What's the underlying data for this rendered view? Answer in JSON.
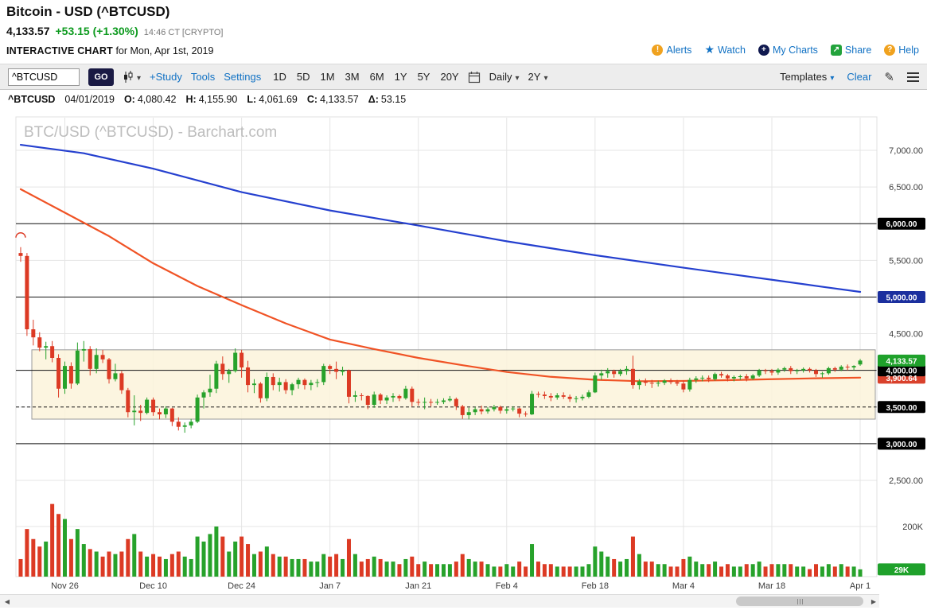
{
  "header": {
    "title": "Bitcoin - USD (^BTCUSD)",
    "price": "4,133.57",
    "change": "+53.15 (+1.30%)",
    "time": "14:46 CT [CRYPTO]",
    "subtitle_bold": "INTERACTIVE CHART",
    "subtitle_rest": "for Mon, Apr 1st, 2019",
    "links": [
      {
        "label": "Alerts",
        "glyph": "!"
      },
      {
        "label": "Watch",
        "glyph": "★"
      },
      {
        "label": "My Charts",
        "glyph": "+"
      },
      {
        "label": "Share",
        "glyph": "↗"
      },
      {
        "label": "Help",
        "glyph": "?"
      }
    ]
  },
  "toolbar": {
    "symbol_value": "^BTCUSD",
    "go_label": "GO",
    "links": [
      "+Study",
      "Tools",
      "Settings"
    ],
    "ranges": [
      "1D",
      "5D",
      "1M",
      "3M",
      "6M",
      "1Y",
      "5Y",
      "20Y"
    ],
    "frequency": "Daily",
    "span": "2Y",
    "templates_label": "Templates",
    "clear_label": "Clear"
  },
  "ohlc_bar": {
    "symbol": "^BTCUSD",
    "date": "04/01/2019",
    "fields": [
      {
        "k": "O:",
        "v": "4,080.42"
      },
      {
        "k": "H:",
        "v": "4,155.90"
      },
      {
        "k": "L:",
        "v": "4,061.69"
      },
      {
        "k": "C:",
        "v": "4,133.57"
      },
      {
        "k": "Δ:",
        "v": "53.15"
      }
    ]
  },
  "chart_data": {
    "type": "candlestick",
    "symbol": "^BTCUSD",
    "frequency": "daily",
    "watermark": "BTC/USD (^BTCUSD) - Barchart.com",
    "ylim": [
      2300,
      7450
    ],
    "x_labels": [
      {
        "label": "Nov 26",
        "i": 7
      },
      {
        "label": "Dec 10",
        "i": 21
      },
      {
        "label": "Dec 24",
        "i": 35
      },
      {
        "label": "Jan 7",
        "i": 49
      },
      {
        "label": "Jan 21",
        "i": 63
      },
      {
        "label": "Feb 4",
        "i": 77
      },
      {
        "label": "Feb 18",
        "i": 91
      },
      {
        "label": "Mar 4",
        "i": 105
      },
      {
        "label": "Mar 18",
        "i": 119
      },
      {
        "label": "Apr 1",
        "i": 133
      }
    ],
    "price_gridlines": [
      2500,
      3000,
      3500,
      4000,
      4500,
      5000,
      5500,
      6000,
      6500,
      7000
    ],
    "plain_price_labels": [
      {
        "price": 7000,
        "label": "7,000.00"
      },
      {
        "price": 6500,
        "label": "6,500.00"
      },
      {
        "price": 5500,
        "label": "5,500.00"
      },
      {
        "price": 4500,
        "label": "4,500.00"
      },
      {
        "price": 2500,
        "label": "2,500.00"
      }
    ],
    "boxed_price_labels": [
      {
        "price": 6000,
        "label": "6,000.00",
        "bg": "#000000"
      },
      {
        "price": 5000,
        "label": "5,000.00",
        "bg": "#1b2f9e"
      },
      {
        "price": 3900.64,
        "label": "3,900.64",
        "bg": "#d9412c"
      },
      {
        "price": 4000,
        "label": "4,000.00",
        "bg": "#000000"
      },
      {
        "price": 3500,
        "label": "3,500.00",
        "bg": "#000000"
      },
      {
        "price": 3000,
        "label": "3,000.00",
        "bg": "#000000"
      },
      {
        "price": 4133.57,
        "label": "4,133.57",
        "bg": "#1fa12b"
      }
    ],
    "hlines": [
      {
        "price": 6000,
        "dash": false
      },
      {
        "price": 5000,
        "dash": false
      },
      {
        "price": 4000,
        "dash": false
      },
      {
        "price": 3500,
        "dash": true
      },
      {
        "price": 3000,
        "dash": false
      }
    ],
    "band": {
      "top": 4280,
      "bottom": 3335,
      "fill": "#fcf3da",
      "border": "#9a9a9a"
    },
    "annotation_arc": {
      "i": 0,
      "price": 5810
    },
    "ma_blue": {
      "name": "long-moving-average",
      "color": "#2540cf",
      "points": [
        [
          0,
          7075
        ],
        [
          10,
          6960
        ],
        [
          21,
          6750
        ],
        [
          35,
          6430
        ],
        [
          49,
          6180
        ],
        [
          63,
          5975
        ],
        [
          77,
          5760
        ],
        [
          91,
          5570
        ],
        [
          105,
          5400
        ],
        [
          119,
          5235
        ],
        [
          127,
          5140
        ],
        [
          133,
          5070
        ]
      ]
    },
    "ma_red": {
      "name": "short-moving-average",
      "color": "#f05325",
      "points": [
        [
          0,
          6470
        ],
        [
          7,
          6150
        ],
        [
          14,
          5830
        ],
        [
          21,
          5460
        ],
        [
          28,
          5150
        ],
        [
          35,
          4890
        ],
        [
          42,
          4640
        ],
        [
          49,
          4420
        ],
        [
          56,
          4290
        ],
        [
          63,
          4170
        ],
        [
          70,
          4070
        ],
        [
          77,
          3978
        ],
        [
          84,
          3912
        ],
        [
          91,
          3872
        ],
        [
          98,
          3852
        ],
        [
          105,
          3856
        ],
        [
          112,
          3866
        ],
        [
          119,
          3880
        ],
        [
          126,
          3892
        ],
        [
          133,
          3901
        ]
      ]
    },
    "volume_axis": {
      "gridline_label": "200K",
      "gridline_value": 200,
      "current_box": {
        "label": "29K",
        "value": 29,
        "bg": "#1fa12b"
      }
    },
    "candles": [
      [
        5600,
        5680,
        5480,
        5560,
        70
      ],
      [
        5560,
        5600,
        4470,
        4560,
        190
      ],
      [
        4560,
        4690,
        4340,
        4450,
        150
      ],
      [
        4450,
        4520,
        4260,
        4310,
        120
      ],
      [
        4310,
        4390,
        4150,
        4330,
        140
      ],
      [
        4330,
        4400,
        4110,
        4170,
        290
      ],
      [
        4170,
        4220,
        3630,
        3750,
        250
      ],
      [
        3750,
        4120,
        3680,
        4060,
        230
      ],
      [
        4060,
        4110,
        3750,
        3820,
        150
      ],
      [
        3820,
        4380,
        3800,
        4270,
        190
      ],
      [
        4270,
        4400,
        4120,
        4290,
        130
      ],
      [
        4290,
        4330,
        3930,
        4020,
        110
      ],
      [
        4020,
        4300,
        3960,
        4210,
        100
      ],
      [
        4210,
        4280,
        4100,
        4150,
        80
      ],
      [
        4150,
        4170,
        3820,
        3880,
        100
      ],
      [
        3880,
        4090,
        3850,
        3960,
        90
      ],
      [
        3960,
        3990,
        3680,
        3730,
        100
      ],
      [
        3730,
        3760,
        3360,
        3430,
        150
      ],
      [
        3430,
        3660,
        3250,
        3450,
        170
      ],
      [
        3450,
        3530,
        3310,
        3420,
        100
      ],
      [
        3420,
        3630,
        3400,
        3600,
        80
      ],
      [
        3600,
        3630,
        3380,
        3430,
        90
      ],
      [
        3430,
        3480,
        3330,
        3400,
        80
      ],
      [
        3400,
        3510,
        3350,
        3480,
        70
      ],
      [
        3480,
        3490,
        3240,
        3300,
        90
      ],
      [
        3300,
        3360,
        3180,
        3230,
        100
      ],
      [
        3230,
        3290,
        3150,
        3250,
        80
      ],
      [
        3250,
        3340,
        3210,
        3300,
        70
      ],
      [
        3300,
        3670,
        3280,
        3630,
        160
      ],
      [
        3630,
        3730,
        3480,
        3700,
        140
      ],
      [
        3700,
        3940,
        3640,
        3750,
        170
      ],
      [
        3750,
        4130,
        3690,
        4090,
        200
      ],
      [
        4090,
        4190,
        3870,
        3950,
        160
      ],
      [
        3950,
        4020,
        3830,
        3990,
        100
      ],
      [
        3990,
        4300,
        3970,
        4240,
        140
      ],
      [
        4240,
        4280,
        3900,
        4040,
        160
      ],
      [
        4040,
        4130,
        3700,
        3800,
        130
      ],
      [
        3800,
        3880,
        3690,
        3820,
        90
      ],
      [
        3820,
        3840,
        3560,
        3620,
        100
      ],
      [
        3620,
        3970,
        3580,
        3910,
        120
      ],
      [
        3910,
        3960,
        3730,
        3800,
        90
      ],
      [
        3800,
        3900,
        3710,
        3840,
        80
      ],
      [
        3840,
        3880,
        3680,
        3730,
        80
      ],
      [
        3730,
        3830,
        3660,
        3810,
        70
      ],
      [
        3810,
        3900,
        3750,
        3870,
        70
      ],
      [
        3870,
        3890,
        3740,
        3800,
        70
      ],
      [
        3800,
        3870,
        3730,
        3830,
        60
      ],
      [
        3830,
        3880,
        3770,
        3840,
        60
      ],
      [
        3840,
        4090,
        3800,
        4060,
        90
      ],
      [
        4060,
        4080,
        3950,
        4020,
        80
      ],
      [
        4020,
        4120,
        3880,
        3980,
        90
      ],
      [
        3980,
        4050,
        3930,
        4000,
        70
      ],
      [
        4000,
        4010,
        3550,
        3640,
        150
      ],
      [
        3640,
        3720,
        3570,
        3660,
        90
      ],
      [
        3660,
        3690,
        3590,
        3650,
        60
      ],
      [
        3650,
        3660,
        3470,
        3530,
        70
      ],
      [
        3530,
        3710,
        3490,
        3670,
        80
      ],
      [
        3670,
        3690,
        3540,
        3590,
        70
      ],
      [
        3590,
        3660,
        3540,
        3630,
        60
      ],
      [
        3630,
        3690,
        3570,
        3650,
        60
      ],
      [
        3650,
        3670,
        3580,
        3620,
        50
      ],
      [
        3620,
        3790,
        3600,
        3750,
        70
      ],
      [
        3750,
        3780,
        3510,
        3570,
        80
      ],
      [
        3570,
        3610,
        3520,
        3560,
        50
      ],
      [
        3560,
        3630,
        3470,
        3570,
        60
      ],
      [
        3570,
        3610,
        3510,
        3560,
        50
      ],
      [
        3560,
        3610,
        3530,
        3570,
        50
      ],
      [
        3570,
        3620,
        3540,
        3590,
        50
      ],
      [
        3590,
        3650,
        3570,
        3610,
        50
      ],
      [
        3610,
        3630,
        3460,
        3510,
        60
      ],
      [
        3510,
        3530,
        3340,
        3390,
        90
      ],
      [
        3390,
        3490,
        3330,
        3430,
        70
      ],
      [
        3430,
        3500,
        3390,
        3470,
        60
      ],
      [
        3470,
        3520,
        3400,
        3440,
        60
      ],
      [
        3440,
        3500,
        3410,
        3470,
        50
      ],
      [
        3470,
        3530,
        3440,
        3500,
        40
      ],
      [
        3500,
        3520,
        3410,
        3450,
        40
      ],
      [
        3450,
        3500,
        3410,
        3470,
        50
      ],
      [
        3470,
        3510,
        3440,
        3480,
        40
      ],
      [
        3480,
        3490,
        3360,
        3410,
        60
      ],
      [
        3410,
        3440,
        3370,
        3400,
        40
      ],
      [
        3400,
        3720,
        3390,
        3680,
        130
      ],
      [
        3680,
        3710,
        3630,
        3670,
        60
      ],
      [
        3670,
        3710,
        3610,
        3650,
        50
      ],
      [
        3650,
        3690,
        3580,
        3630,
        50
      ],
      [
        3630,
        3690,
        3600,
        3660,
        40
      ],
      [
        3660,
        3700,
        3610,
        3640,
        40
      ],
      [
        3640,
        3670,
        3570,
        3610,
        40
      ],
      [
        3610,
        3650,
        3560,
        3620,
        40
      ],
      [
        3620,
        3670,
        3590,
        3640,
        40
      ],
      [
        3640,
        3730,
        3620,
        3700,
        50
      ],
      [
        3700,
        3970,
        3690,
        3930,
        120
      ],
      [
        3930,
        4010,
        3870,
        3960,
        100
      ],
      [
        3960,
        4030,
        3900,
        3990,
        80
      ],
      [
        3990,
        4010,
        3900,
        3950,
        70
      ],
      [
        3950,
        4020,
        3920,
        3990,
        60
      ],
      [
        3990,
        4060,
        3940,
        4020,
        70
      ],
      [
        4020,
        4200,
        3750,
        3800,
        160
      ],
      [
        3800,
        3880,
        3740,
        3850,
        90
      ],
      [
        3850,
        3890,
        3790,
        3830,
        60
      ],
      [
        3830,
        3870,
        3760,
        3820,
        60
      ],
      [
        3820,
        3860,
        3780,
        3830,
        50
      ],
      [
        3830,
        3880,
        3800,
        3860,
        50
      ],
      [
        3860,
        3890,
        3810,
        3840,
        40
      ],
      [
        3840,
        3870,
        3790,
        3820,
        40
      ],
      [
        3820,
        3860,
        3700,
        3740,
        70
      ],
      [
        3740,
        3900,
        3710,
        3870,
        80
      ],
      [
        3870,
        3920,
        3830,
        3890,
        60
      ],
      [
        3890,
        3930,
        3850,
        3900,
        50
      ],
      [
        3900,
        3930,
        3840,
        3880,
        50
      ],
      [
        3880,
        3970,
        3860,
        3950,
        60
      ],
      [
        3950,
        3980,
        3900,
        3930,
        40
      ],
      [
        3930,
        3950,
        3850,
        3890,
        50
      ],
      [
        3890,
        3930,
        3850,
        3910,
        40
      ],
      [
        3910,
        3940,
        3870,
        3920,
        40
      ],
      [
        3920,
        3950,
        3850,
        3890,
        50
      ],
      [
        3890,
        3950,
        3870,
        3930,
        50
      ],
      [
        3930,
        4020,
        3910,
        4000,
        60
      ],
      [
        4000,
        4020,
        3950,
        3990,
        40
      ],
      [
        3990,
        4020,
        3930,
        3970,
        50
      ],
      [
        3970,
        4030,
        3940,
        4010,
        50
      ],
      [
        4010,
        4050,
        3980,
        4030,
        50
      ],
      [
        4030,
        4060,
        3950,
        3990,
        50
      ],
      [
        3990,
        4020,
        3950,
        4000,
        40
      ],
      [
        4000,
        4040,
        3970,
        4020,
        40
      ],
      [
        4020,
        4040,
        3970,
        4000,
        30
      ],
      [
        4000,
        4020,
        3910,
        3950,
        50
      ],
      [
        3950,
        3980,
        3900,
        3960,
        40
      ],
      [
        3960,
        4050,
        3940,
        4030,
        50
      ],
      [
        4030,
        4050,
        3980,
        4010,
        40
      ],
      [
        4010,
        4070,
        3990,
        4050,
        50
      ],
      [
        4050,
        4080,
        4000,
        4040,
        40
      ],
      [
        4040,
        4070,
        4000,
        4060,
        40
      ],
      [
        4080.42,
        4155.9,
        4061.69,
        4133.57,
        29
      ]
    ],
    "colors": {
      "up": "#27a22b",
      "down": "#dc3a24",
      "grid": "#e5e5e5",
      "hline": "#141414"
    }
  },
  "scrollbar": {
    "left_arrow": "◀",
    "right_arrow": "▶"
  }
}
